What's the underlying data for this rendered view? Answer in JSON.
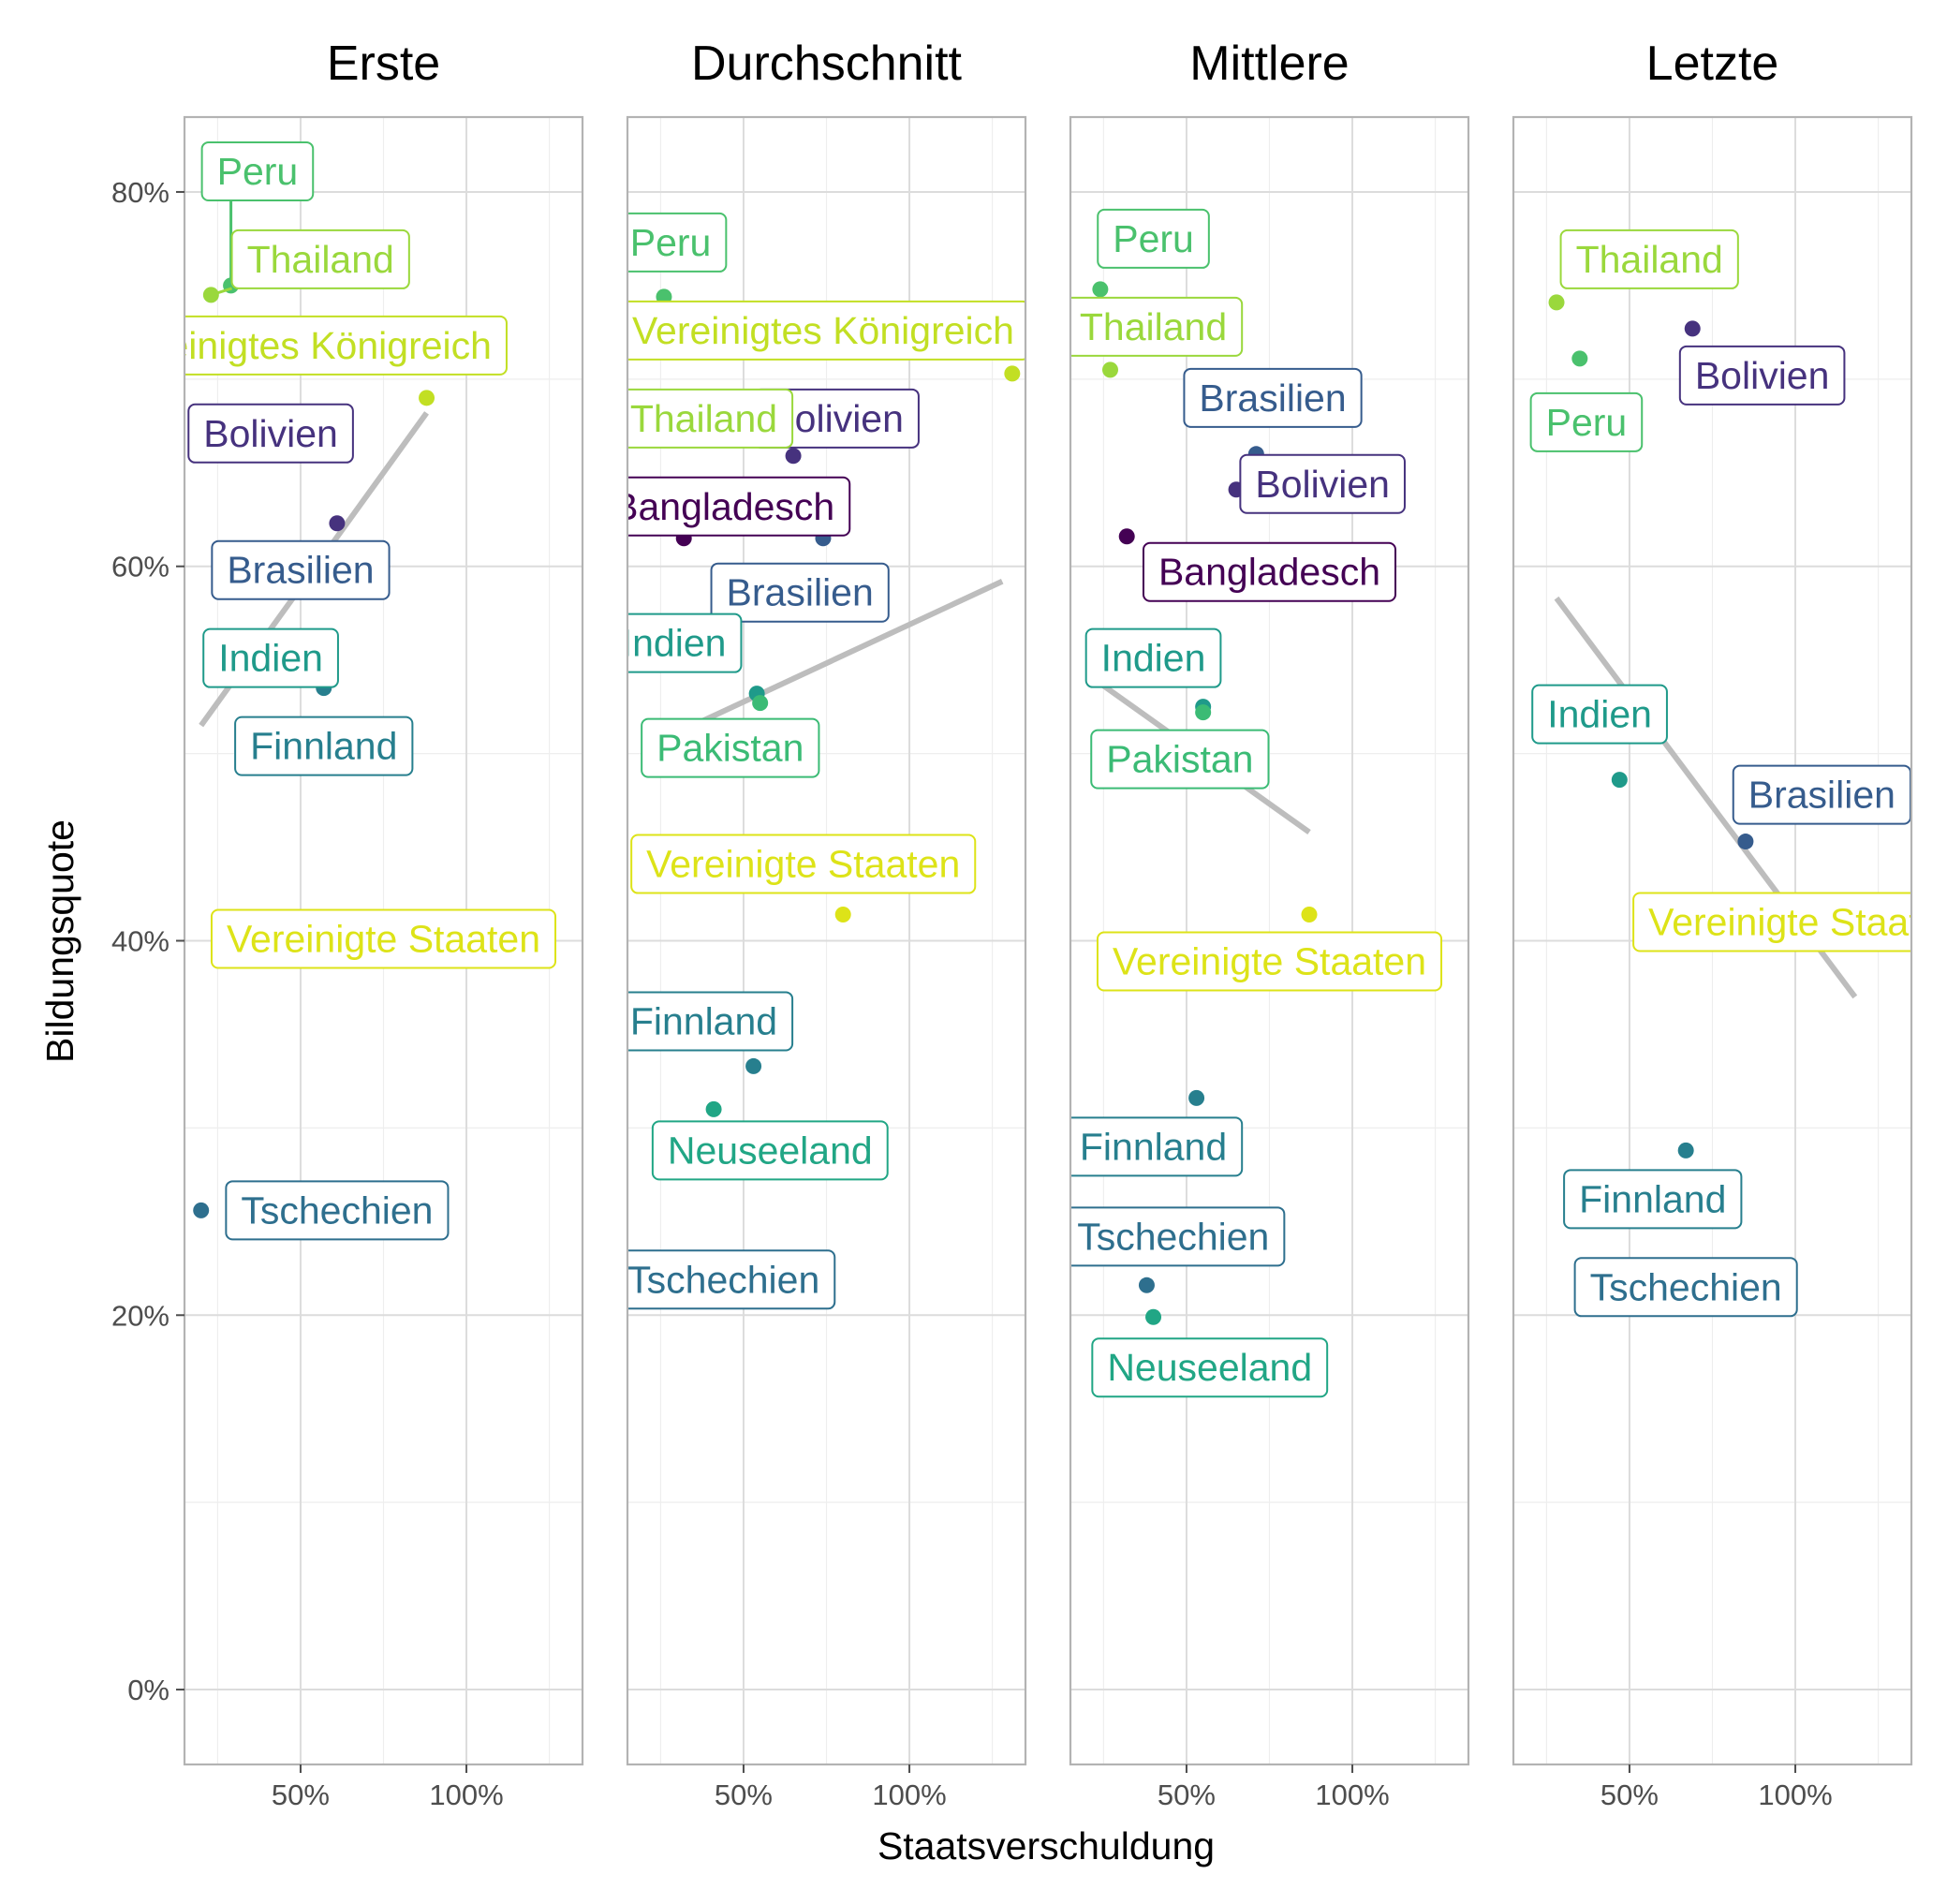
{
  "chart_data": {
    "type": "scatter",
    "facet_by": "panel",
    "xlabel": "Staatsverschuldung",
    "ylabel": "Bildungsquote",
    "x_unit": "percent",
    "y_unit": "percent",
    "xlim": [
      15,
      135
    ],
    "ylim": [
      -4,
      84
    ],
    "x_ticks": [
      50,
      100
    ],
    "x_tick_labels": [
      "50%",
      "100%"
    ],
    "y_ticks": [
      0,
      20,
      40,
      60,
      80
    ],
    "y_tick_labels": [
      "0%",
      "20%",
      "40%",
      "60%",
      "80%"
    ],
    "grid": true,
    "trend_line_color": "#bdbdbd",
    "country_colors": {
      "Bangladesch": "#440154",
      "Bolivien": "#46327e",
      "Brasilien": "#365c8d",
      "Tschechien": "#2e6f8e",
      "Finnland": "#277f8e",
      "Indien": "#1f9a8a",
      "Neuseeland": "#21a685",
      "Pakistan": "#3bbb75",
      "Peru": "#4ac16d",
      "Thailand": "#9ad83c",
      "Vereinigtes Königreich": "#c2df23",
      "Vereinigte Staaten": "#dde318"
    },
    "panels": [
      {
        "title": "Erste",
        "trend": [
          [
            20,
            51.5
          ],
          [
            88,
            68.2
          ]
        ],
        "points": [
          {
            "country": "Peru",
            "x": 29,
            "y": 75.0,
            "color": "#4ac16d"
          },
          {
            "country": "Thailand",
            "x": 23,
            "y": 74.5,
            "color": "#9ad83c"
          },
          {
            "country": "Vereinigtes Königreich",
            "x": 88,
            "y": 69.0,
            "color": "#c2df23"
          },
          {
            "country": "Bolivien",
            "x": 61,
            "y": 62.3,
            "color": "#46327e"
          },
          {
            "country": "Finnland",
            "x": 57,
            "y": 53.5,
            "color": "#277f8e"
          },
          {
            "country": "Tschechien",
            "x": 20,
            "y": 25.6,
            "color": "#2e6f8e"
          }
        ],
        "labels": [
          {
            "text": "Peru",
            "x": 37,
            "y": 81.1,
            "color": "#4ac16d",
            "leader": [
              29,
              75.0
            ]
          },
          {
            "text": "Thailand",
            "x": 56,
            "y": 76.4,
            "color": "#9ad83c",
            "leader": [
              23,
              74.5
            ]
          },
          {
            "text": "Vereinigtes Königreich",
            "x": 50,
            "y": 71.8,
            "color": "#c2df23"
          },
          {
            "text": "Bolivien",
            "x": 41,
            "y": 67.1,
            "color": "#46327e"
          },
          {
            "text": "Brasilien",
            "x": 50,
            "y": 59.8,
            "color": "#365c8d"
          },
          {
            "text": "Indien",
            "x": 41,
            "y": 55.1,
            "color": "#1f9a8a"
          },
          {
            "text": "Finnland",
            "x": 57,
            "y": 50.4,
            "color": "#277f8e"
          },
          {
            "text": "Vereinigte Staaten",
            "x": 75,
            "y": 40.1,
            "color": "#dde318"
          },
          {
            "text": "Tschechien",
            "x": 61,
            "y": 25.6,
            "color": "#2e6f8e"
          }
        ]
      },
      {
        "title": "Durchschnitt",
        "trend": [
          [
            25,
            50.7
          ],
          [
            128,
            59.2
          ]
        ],
        "points": [
          {
            "country": "Peru",
            "x": 26,
            "y": 74.4,
            "color": "#4ac16d"
          },
          {
            "country": "Vereinigtes Königreich",
            "x": 131,
            "y": 70.3,
            "color": "#c2df23"
          },
          {
            "country": "Bolivien",
            "x": 65,
            "y": 65.9,
            "color": "#46327e"
          },
          {
            "country": "Bangladesch",
            "x": 32,
            "y": 61.5,
            "color": "#440154"
          },
          {
            "country": "Brasilien",
            "x": 74,
            "y": 61.5,
            "color": "#365c8d"
          },
          {
            "country": "Indien",
            "x": 54,
            "y": 53.2,
            "color": "#1f9a8a"
          },
          {
            "country": "Pakistan",
            "x": 55,
            "y": 52.7,
            "color": "#3bbb75"
          },
          {
            "country": "Vereinigte Staaten",
            "x": 80,
            "y": 41.4,
            "color": "#dde318"
          },
          {
            "country": "Finnland",
            "x": 53,
            "y": 33.3,
            "color": "#277f8e"
          },
          {
            "country": "Neuseeland",
            "x": 41,
            "y": 31.0,
            "color": "#21a685"
          }
        ],
        "labels": [
          {
            "text": "Peru",
            "x": 28,
            "y": 77.3,
            "color": "#4ac16d"
          },
          {
            "text": "Vereinigtes Königreich",
            "x": 74,
            "y": 72.6,
            "color": "#c2df23"
          },
          {
            "text": "Bolivien",
            "x": 78,
            "y": 67.9,
            "color": "#46327e"
          },
          {
            "text": "Thailand",
            "x": 38,
            "y": 67.9,
            "color": "#9ad83c"
          },
          {
            "text": "Bangladesch",
            "x": 44,
            "y": 63.2,
            "color": "#440154"
          },
          {
            "text": "Brasilien",
            "x": 67,
            "y": 58.6,
            "color": "#365c8d"
          },
          {
            "text": "Indien",
            "x": 29,
            "y": 55.9,
            "color": "#1f9a8a"
          },
          {
            "text": "Pakistan",
            "x": 46,
            "y": 50.3,
            "color": "#3bbb75"
          },
          {
            "text": "Vereinigte Staaten",
            "x": 68,
            "y": 44.1,
            "color": "#dde318"
          },
          {
            "text": "Finnland",
            "x": 38,
            "y": 35.7,
            "color": "#277f8e"
          },
          {
            "text": "Neuseeland",
            "x": 58,
            "y": 28.8,
            "color": "#21a685"
          },
          {
            "text": "Tschechien",
            "x": 44,
            "y": 21.9,
            "color": "#2e6f8e"
          }
        ]
      },
      {
        "title": "Mittlere",
        "trend": [
          [
            22,
            54.0
          ],
          [
            87,
            45.8
          ]
        ],
        "points": [
          {
            "country": "Peru",
            "x": 24,
            "y": 74.8,
            "color": "#4ac16d"
          },
          {
            "country": "Thailand",
            "x": 27,
            "y": 70.5,
            "color": "#9ad83c"
          },
          {
            "country": "Brasilien",
            "x": 71,
            "y": 66.0,
            "color": "#365c8d"
          },
          {
            "country": "Bolivien",
            "x": 65,
            "y": 64.1,
            "color": "#46327e"
          },
          {
            "country": "Bangladesch",
            "x": 32,
            "y": 61.6,
            "color": "#440154"
          },
          {
            "country": "Indien",
            "x": 55,
            "y": 52.5,
            "color": "#1f9a8a"
          },
          {
            "country": "Pakistan",
            "x": 55,
            "y": 52.2,
            "color": "#3bbb75"
          },
          {
            "country": "Vereinigte Staaten",
            "x": 87,
            "y": 41.4,
            "color": "#dde318"
          },
          {
            "country": "Finnland",
            "x": 53,
            "y": 31.6,
            "color": "#277f8e"
          },
          {
            "country": "Tschechien",
            "x": 38,
            "y": 21.6,
            "color": "#2e6f8e"
          },
          {
            "country": "Neuseeland",
            "x": 40,
            "y": 19.9,
            "color": "#21a685"
          }
        ],
        "labels": [
          {
            "text": "Peru",
            "x": 40,
            "y": 77.5,
            "color": "#4ac16d"
          },
          {
            "text": "Thailand",
            "x": 40,
            "y": 72.8,
            "color": "#9ad83c"
          },
          {
            "text": "Brasilien",
            "x": 76,
            "y": 69.0,
            "color": "#365c8d"
          },
          {
            "text": "Bolivien",
            "x": 91,
            "y": 64.4,
            "color": "#46327e",
            "leader": [
              65,
              64.1
            ]
          },
          {
            "text": "Bangladesch",
            "x": 75,
            "y": 59.7,
            "color": "#440154"
          },
          {
            "text": "Indien",
            "x": 40,
            "y": 55.1,
            "color": "#1f9a8a"
          },
          {
            "text": "Pakistan",
            "x": 48,
            "y": 49.7,
            "color": "#3bbb75"
          },
          {
            "text": "Vereinigte Staaten",
            "x": 75,
            "y": 38.9,
            "color": "#dde318"
          },
          {
            "text": "Finnland",
            "x": 40,
            "y": 29.0,
            "color": "#277f8e"
          },
          {
            "text": "Tschechien",
            "x": 46,
            "y": 24.2,
            "color": "#2e6f8e"
          },
          {
            "text": "Neuseeland",
            "x": 57,
            "y": 17.2,
            "color": "#21a685"
          }
        ]
      },
      {
        "title": "Letzte",
        "trend": [
          [
            28,
            58.3
          ],
          [
            118,
            37.0
          ]
        ],
        "points": [
          {
            "country": "Thailand",
            "x": 28,
            "y": 74.1,
            "color": "#9ad83c"
          },
          {
            "country": "Bolivien",
            "x": 69,
            "y": 72.7,
            "color": "#46327e"
          },
          {
            "country": "Peru",
            "x": 35,
            "y": 71.1,
            "color": "#4ac16d"
          },
          {
            "country": "Indien",
            "x": 47,
            "y": 48.6,
            "color": "#1f9a8a"
          },
          {
            "country": "Brasilien",
            "x": 85,
            "y": 45.3,
            "color": "#365c8d"
          },
          {
            "country": "Finnland",
            "x": 67,
            "y": 28.8,
            "color": "#277f8e"
          }
        ],
        "labels": [
          {
            "text": "Thailand",
            "x": 56,
            "y": 76.4,
            "color": "#9ad83c"
          },
          {
            "text": "Bolivien",
            "x": 90,
            "y": 70.2,
            "color": "#46327e"
          },
          {
            "text": "Peru",
            "x": 37,
            "y": 67.7,
            "color": "#4ac16d"
          },
          {
            "text": "Indien",
            "x": 41,
            "y": 52.1,
            "color": "#1f9a8a"
          },
          {
            "text": "Brasilien",
            "x": 108,
            "y": 47.8,
            "color": "#365c8d"
          },
          {
            "text": "Vereinigte Staaten",
            "x": 103,
            "y": 41.0,
            "color": "#dde318"
          },
          {
            "text": "Finnland",
            "x": 57,
            "y": 26.2,
            "color": "#277f8e"
          },
          {
            "text": "Tschechien",
            "x": 67,
            "y": 21.5,
            "color": "#2e6f8e"
          }
        ]
      }
    ]
  }
}
